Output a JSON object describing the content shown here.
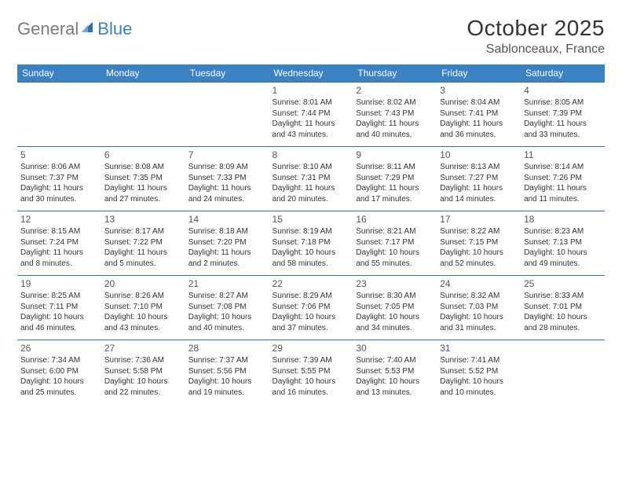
{
  "brand": {
    "part1": "General",
    "part2": "Blue"
  },
  "title": "October 2025",
  "location": "Sablonceaux, France",
  "colors": {
    "header_bg": "#3b82c4",
    "header_text": "#ffffff",
    "border": "#3b6fa0",
    "brand_gray": "#7b7b7b",
    "brand_blue": "#3b7fc4"
  },
  "weekdays": [
    "Sunday",
    "Monday",
    "Tuesday",
    "Wednesday",
    "Thursday",
    "Friday",
    "Saturday"
  ],
  "weeks": [
    [
      null,
      null,
      null,
      {
        "n": "1",
        "sr": "Sunrise: 8:01 AM",
        "ss": "Sunset: 7:44 PM",
        "d1": "Daylight: 11 hours",
        "d2": "and 43 minutes."
      },
      {
        "n": "2",
        "sr": "Sunrise: 8:02 AM",
        "ss": "Sunset: 7:43 PM",
        "d1": "Daylight: 11 hours",
        "d2": "and 40 minutes."
      },
      {
        "n": "3",
        "sr": "Sunrise: 8:04 AM",
        "ss": "Sunset: 7:41 PM",
        "d1": "Daylight: 11 hours",
        "d2": "and 36 minutes."
      },
      {
        "n": "4",
        "sr": "Sunrise: 8:05 AM",
        "ss": "Sunset: 7:39 PM",
        "d1": "Daylight: 11 hours",
        "d2": "and 33 minutes."
      }
    ],
    [
      {
        "n": "5",
        "sr": "Sunrise: 8:06 AM",
        "ss": "Sunset: 7:37 PM",
        "d1": "Daylight: 11 hours",
        "d2": "and 30 minutes."
      },
      {
        "n": "6",
        "sr": "Sunrise: 8:08 AM",
        "ss": "Sunset: 7:35 PM",
        "d1": "Daylight: 11 hours",
        "d2": "and 27 minutes."
      },
      {
        "n": "7",
        "sr": "Sunrise: 8:09 AM",
        "ss": "Sunset: 7:33 PM",
        "d1": "Daylight: 11 hours",
        "d2": "and 24 minutes."
      },
      {
        "n": "8",
        "sr": "Sunrise: 8:10 AM",
        "ss": "Sunset: 7:31 PM",
        "d1": "Daylight: 11 hours",
        "d2": "and 20 minutes."
      },
      {
        "n": "9",
        "sr": "Sunrise: 8:11 AM",
        "ss": "Sunset: 7:29 PM",
        "d1": "Daylight: 11 hours",
        "d2": "and 17 minutes."
      },
      {
        "n": "10",
        "sr": "Sunrise: 8:13 AM",
        "ss": "Sunset: 7:27 PM",
        "d1": "Daylight: 11 hours",
        "d2": "and 14 minutes."
      },
      {
        "n": "11",
        "sr": "Sunrise: 8:14 AM",
        "ss": "Sunset: 7:26 PM",
        "d1": "Daylight: 11 hours",
        "d2": "and 11 minutes."
      }
    ],
    [
      {
        "n": "12",
        "sr": "Sunrise: 8:15 AM",
        "ss": "Sunset: 7:24 PM",
        "d1": "Daylight: 11 hours",
        "d2": "and 8 minutes."
      },
      {
        "n": "13",
        "sr": "Sunrise: 8:17 AM",
        "ss": "Sunset: 7:22 PM",
        "d1": "Daylight: 11 hours",
        "d2": "and 5 minutes."
      },
      {
        "n": "14",
        "sr": "Sunrise: 8:18 AM",
        "ss": "Sunset: 7:20 PM",
        "d1": "Daylight: 11 hours",
        "d2": "and 2 minutes."
      },
      {
        "n": "15",
        "sr": "Sunrise: 8:19 AM",
        "ss": "Sunset: 7:18 PM",
        "d1": "Daylight: 10 hours",
        "d2": "and 58 minutes."
      },
      {
        "n": "16",
        "sr": "Sunrise: 8:21 AM",
        "ss": "Sunset: 7:17 PM",
        "d1": "Daylight: 10 hours",
        "d2": "and 55 minutes."
      },
      {
        "n": "17",
        "sr": "Sunrise: 8:22 AM",
        "ss": "Sunset: 7:15 PM",
        "d1": "Daylight: 10 hours",
        "d2": "and 52 minutes."
      },
      {
        "n": "18",
        "sr": "Sunrise: 8:23 AM",
        "ss": "Sunset: 7:13 PM",
        "d1": "Daylight: 10 hours",
        "d2": "and 49 minutes."
      }
    ],
    [
      {
        "n": "19",
        "sr": "Sunrise: 8:25 AM",
        "ss": "Sunset: 7:11 PM",
        "d1": "Daylight: 10 hours",
        "d2": "and 46 minutes."
      },
      {
        "n": "20",
        "sr": "Sunrise: 8:26 AM",
        "ss": "Sunset: 7:10 PM",
        "d1": "Daylight: 10 hours",
        "d2": "and 43 minutes."
      },
      {
        "n": "21",
        "sr": "Sunrise: 8:27 AM",
        "ss": "Sunset: 7:08 PM",
        "d1": "Daylight: 10 hours",
        "d2": "and 40 minutes."
      },
      {
        "n": "22",
        "sr": "Sunrise: 8:29 AM",
        "ss": "Sunset: 7:06 PM",
        "d1": "Daylight: 10 hours",
        "d2": "and 37 minutes."
      },
      {
        "n": "23",
        "sr": "Sunrise: 8:30 AM",
        "ss": "Sunset: 7:05 PM",
        "d1": "Daylight: 10 hours",
        "d2": "and 34 minutes."
      },
      {
        "n": "24",
        "sr": "Sunrise: 8:32 AM",
        "ss": "Sunset: 7:03 PM",
        "d1": "Daylight: 10 hours",
        "d2": "and 31 minutes."
      },
      {
        "n": "25",
        "sr": "Sunrise: 8:33 AM",
        "ss": "Sunset: 7:01 PM",
        "d1": "Daylight: 10 hours",
        "d2": "and 28 minutes."
      }
    ],
    [
      {
        "n": "26",
        "sr": "Sunrise: 7:34 AM",
        "ss": "Sunset: 6:00 PM",
        "d1": "Daylight: 10 hours",
        "d2": "and 25 minutes."
      },
      {
        "n": "27",
        "sr": "Sunrise: 7:36 AM",
        "ss": "Sunset: 5:58 PM",
        "d1": "Daylight: 10 hours",
        "d2": "and 22 minutes."
      },
      {
        "n": "28",
        "sr": "Sunrise: 7:37 AM",
        "ss": "Sunset: 5:56 PM",
        "d1": "Daylight: 10 hours",
        "d2": "and 19 minutes."
      },
      {
        "n": "29",
        "sr": "Sunrise: 7:39 AM",
        "ss": "Sunset: 5:55 PM",
        "d1": "Daylight: 10 hours",
        "d2": "and 16 minutes."
      },
      {
        "n": "30",
        "sr": "Sunrise: 7:40 AM",
        "ss": "Sunset: 5:53 PM",
        "d1": "Daylight: 10 hours",
        "d2": "and 13 minutes."
      },
      {
        "n": "31",
        "sr": "Sunrise: 7:41 AM",
        "ss": "Sunset: 5:52 PM",
        "d1": "Daylight: 10 hours",
        "d2": "and 10 minutes."
      },
      null
    ]
  ]
}
